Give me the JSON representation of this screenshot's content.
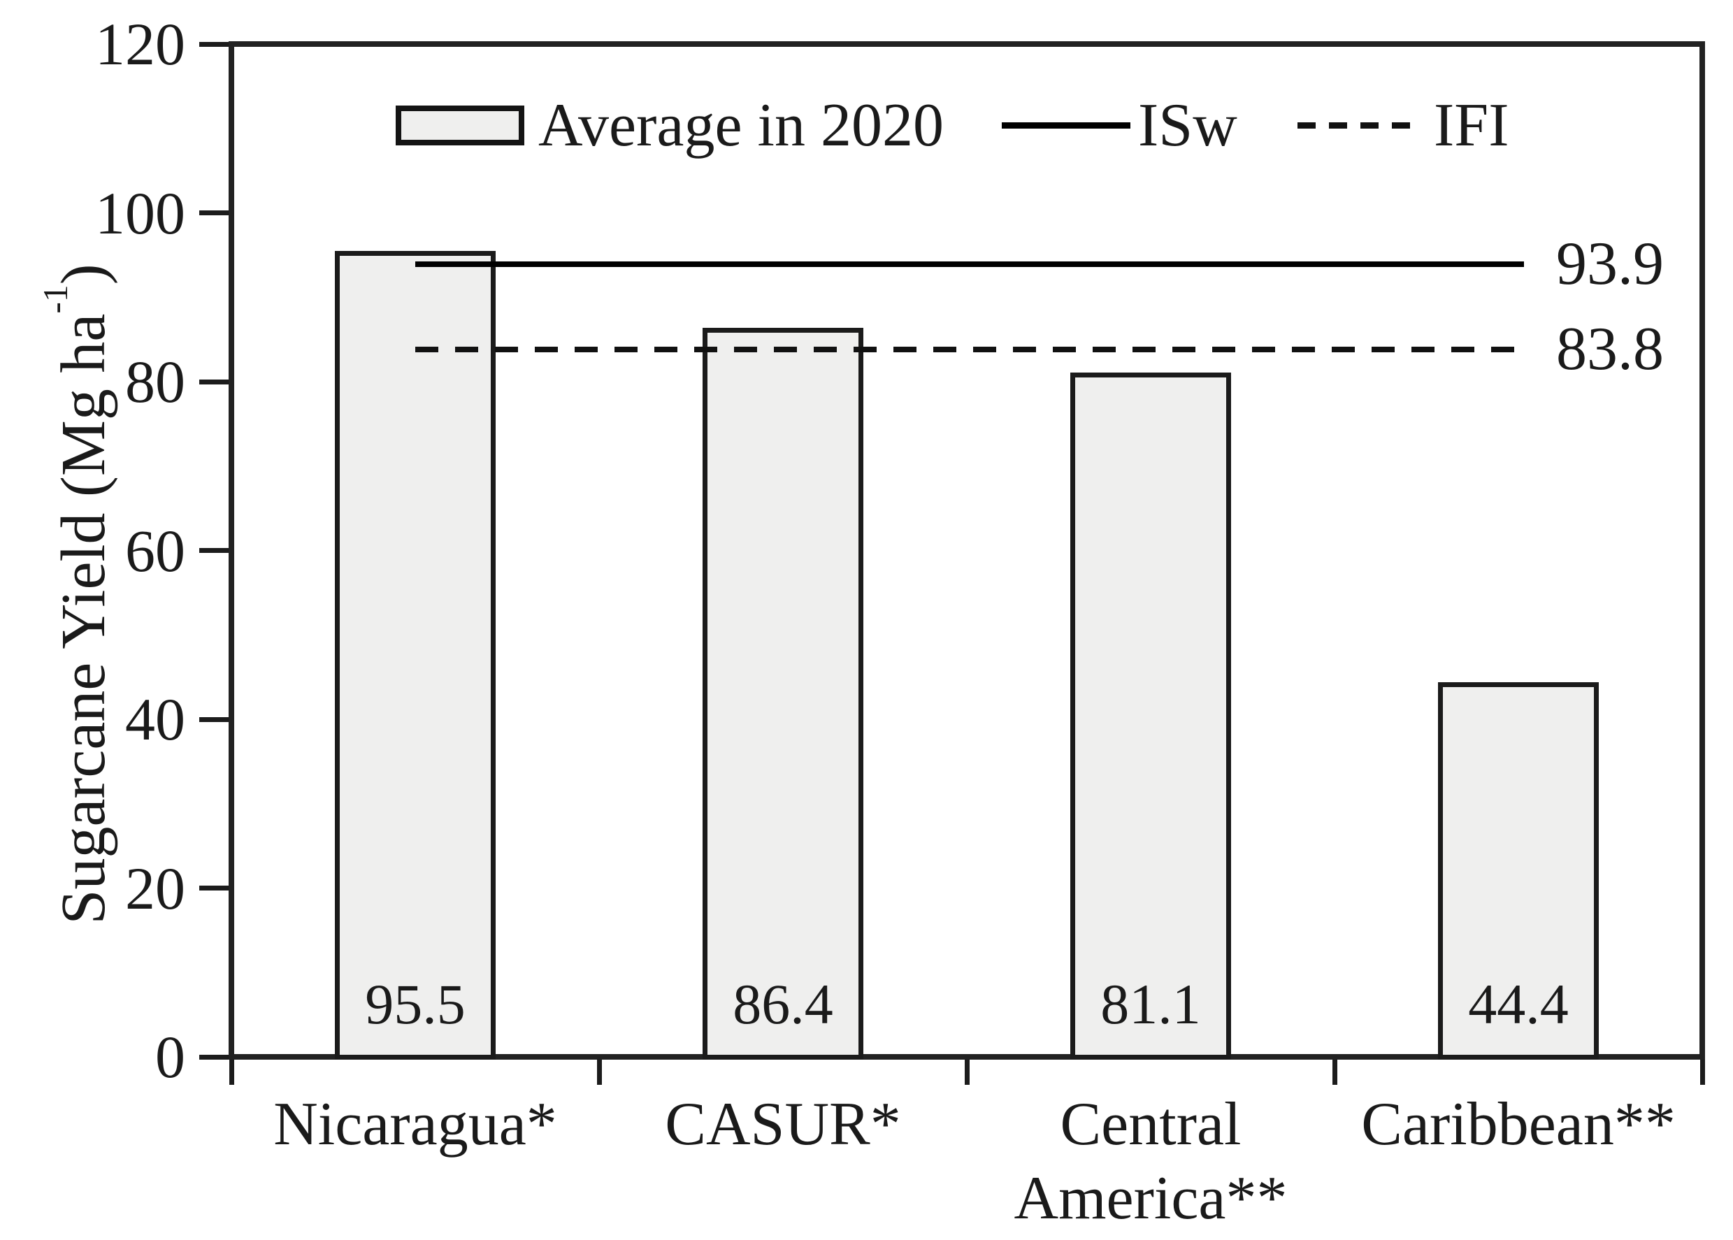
{
  "chart_data": {
    "type": "bar",
    "categories": [
      "Nicaragua*",
      "CASUR*",
      "Central America**",
      "Caribbean**"
    ],
    "values": [
      95.5,
      86.4,
      81.1,
      44.4
    ],
    "bar_value_labels": [
      "95.5",
      "86.4",
      "81.1",
      "44.4"
    ],
    "series_name": "Average in 2020",
    "reference_lines": [
      {
        "name": "ISw",
        "value": 93.9,
        "label": "93.9",
        "style": "solid"
      },
      {
        "name": "IFI",
        "value": 83.8,
        "label": "83.8",
        "style": "dashed"
      }
    ],
    "legend": [
      {
        "label": "Average in 2020",
        "marker": "bar-swatch"
      },
      {
        "label": "ISw",
        "marker": "solid-line"
      },
      {
        "label": "IFI",
        "marker": "dashed-line"
      }
    ],
    "legend_position": "top-inside",
    "ylabel": "Sugarcane Yield (Mg ha⁻¹)",
    "ylabel_parts": {
      "pre": "Sugarcane Yield (Mg ha",
      "sup": "-1",
      "post": ")"
    },
    "xlabel": "",
    "ylim": [
      0,
      120
    ],
    "yticks": [
      "0",
      "20",
      "40",
      "60",
      "80",
      "100",
      "120"
    ],
    "grid": false,
    "colors": {
      "bar_fill": "#efefee",
      "bar_border": "#1b1b1b",
      "axis": "#222222",
      "line": "#000000",
      "text": "#1a1a1a",
      "background": "#ffffff"
    }
  }
}
